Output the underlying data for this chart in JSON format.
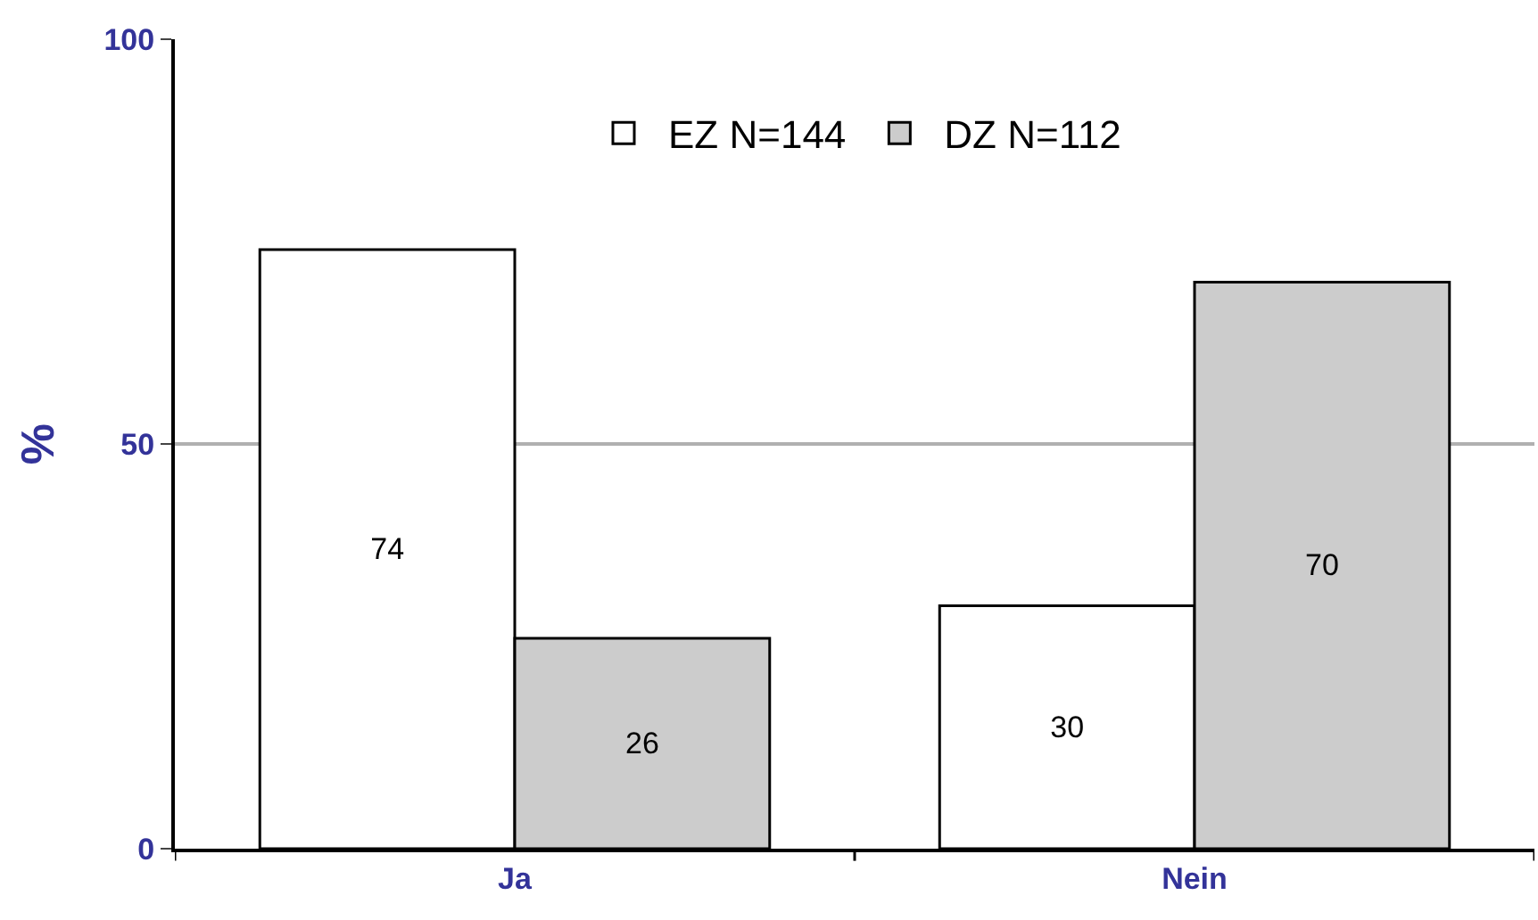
{
  "chart_data": {
    "type": "bar",
    "ylabel": "%",
    "categories": [
      "Ja",
      "Nein"
    ],
    "series": [
      {
        "name": "EZ N=144",
        "color": "#ffffff",
        "values": [
          74,
          30
        ]
      },
      {
        "name": "DZ N=112",
        "color": "#cccccc",
        "values": [
          26,
          70
        ]
      }
    ],
    "ylim": [
      0,
      100
    ],
    "yticks": [
      0,
      50,
      100
    ],
    "grid": "y",
    "legend": "top",
    "data_labels": true
  }
}
